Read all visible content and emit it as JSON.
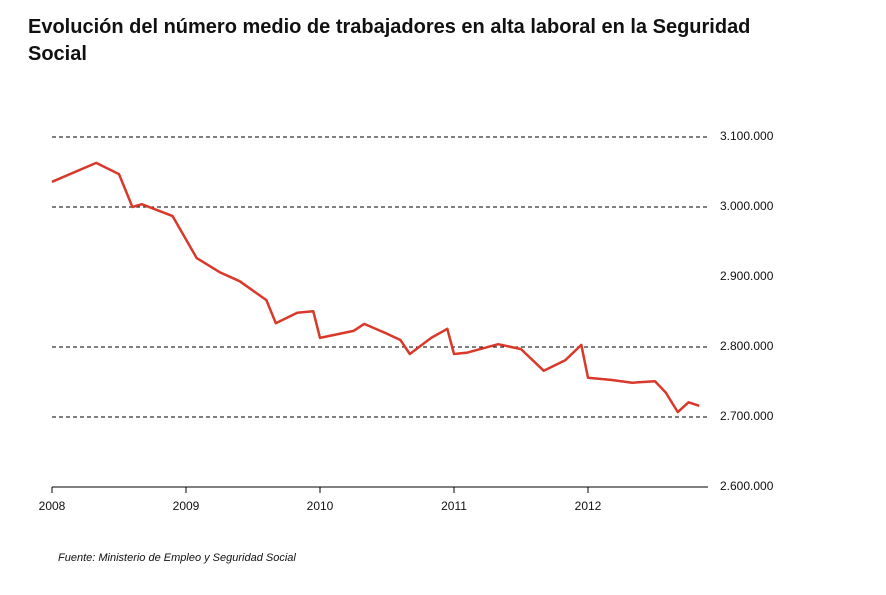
{
  "chart_data": {
    "type": "line",
    "title": "Evolución del número medio de trabajadores en alta laboral en la Seguridad Social",
    "source": "Fuente: Ministerio de Empleo y Seguridad Social",
    "color": "#d9392b",
    "x": [
      2008.0,
      2008.33,
      2008.5,
      2008.6,
      2008.67,
      2008.9,
      2009.08,
      2009.25,
      2009.4,
      2009.6,
      2009.67,
      2009.83,
      2009.95,
      2010.0,
      2010.25,
      2010.33,
      2010.5,
      2010.6,
      2010.67,
      2010.83,
      2010.95,
      2011.0,
      2011.1,
      2011.33,
      2011.5,
      2011.67,
      2011.83,
      2011.95,
      2012.0,
      2012.17,
      2012.33,
      2012.5,
      2012.58,
      2012.67,
      2012.75,
      2012.83
    ],
    "values": [
      3036000,
      3063000,
      3047000,
      3000000,
      3004000,
      2987000,
      2927000,
      2907000,
      2894000,
      2867000,
      2834000,
      2849000,
      2851000,
      2813000,
      2823000,
      2833000,
      2819000,
      2810000,
      2790000,
      2813000,
      2826000,
      2790000,
      2792000,
      2804000,
      2797000,
      2766000,
      2781000,
      2803000,
      2756000,
      2753000,
      2749000,
      2751000,
      2735000,
      2707000,
      2721000,
      2716000
    ],
    "xlim": [
      2008,
      2012.85
    ],
    "xticks": [
      2008,
      2009,
      2010,
      2011,
      2012
    ],
    "ylim": [
      2600000,
      3100000
    ],
    "yticks": [
      {
        "value": 2600000,
        "label": "2.600.000"
      },
      {
        "value": 2700000,
        "label": "2.700.000"
      },
      {
        "value": 2800000,
        "label": "2.800.000"
      },
      {
        "value": 2900000,
        "label": "2.900.000"
      },
      {
        "value": 3000000,
        "label": "3.000.000"
      },
      {
        "value": 3100000,
        "label": "3.100.000"
      }
    ],
    "grid_values": [
      2700000,
      2800000,
      3000000,
      3100000
    ]
  }
}
